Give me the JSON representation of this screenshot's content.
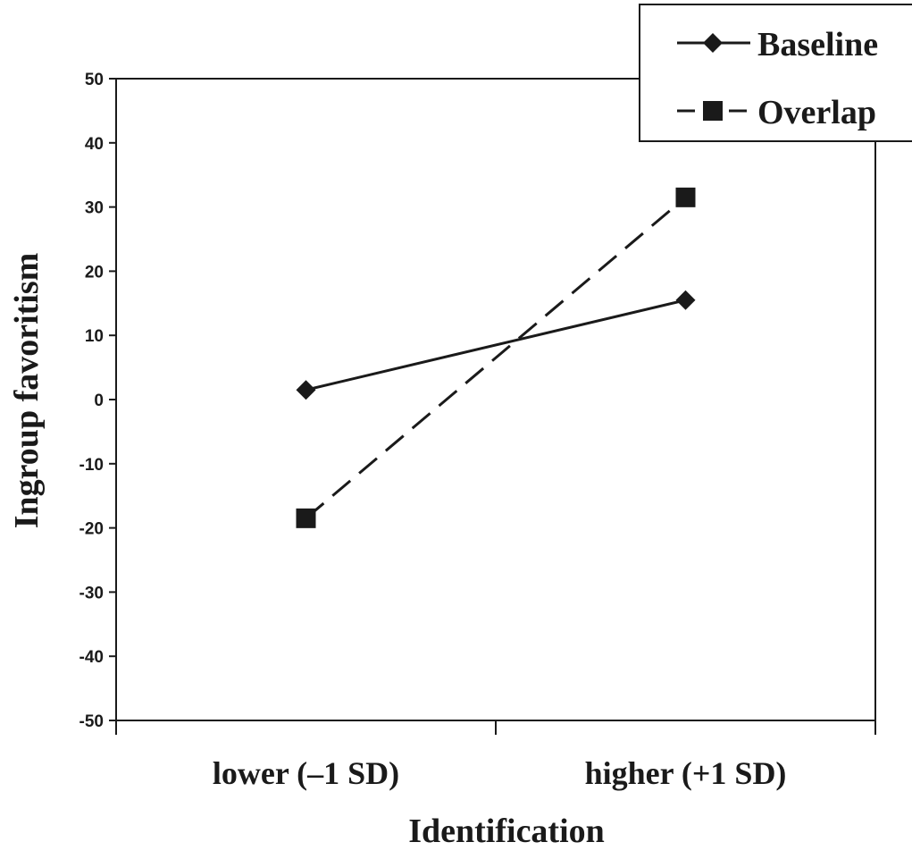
{
  "chart_data": {
    "type": "line",
    "title": "",
    "xlabel": "Identification",
    "ylabel": "Ingroup favoritism",
    "categories": [
      "lower (–1 SD)",
      "higher (+1 SD)"
    ],
    "ylim": [
      -50,
      50
    ],
    "yticks": [
      "50",
      "40",
      "30",
      "20",
      "10",
      "0",
      "-10",
      "-20",
      "-30",
      "-40",
      "-50"
    ],
    "series": [
      {
        "name": "Baseline",
        "values": [
          1.5,
          15.5
        ],
        "line_style": "solid",
        "marker": "diamond",
        "color": "#1a1a1a"
      },
      {
        "name": "Overlap",
        "values": [
          -18.5,
          31.5
        ],
        "line_style": "dashed",
        "marker": "square",
        "color": "#1a1a1a"
      }
    ],
    "legend_position": "top-right",
    "grid": false
  }
}
